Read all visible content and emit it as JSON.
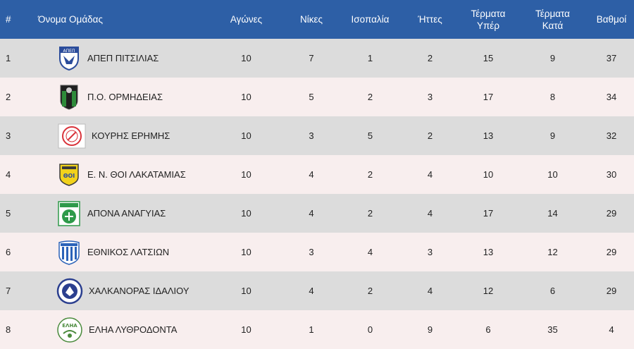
{
  "header": {
    "pos": "#",
    "team": "Όνομα Ομάδας",
    "played": "Αγώνες",
    "wins": "Νίκες",
    "draws": "Ισοπαλία",
    "losses": "Ήττες",
    "goals_for_line1": "Τέρματα",
    "goals_for_line2": "Υπέρ",
    "goals_against_line1": "Τέρματα",
    "goals_against_line2": "Κατά",
    "points": "Βαθμοί"
  },
  "colors": {
    "header_bg": "#2d5fa6",
    "row_odd": "#dcdcdc",
    "row_even": "#f8eeee"
  },
  "rows": [
    {
      "pos": "1",
      "team": "ΑΠΕΠ ΠΙΤΣΙΛΙΑΣ",
      "logo": "apep-crest-icon",
      "played": "10",
      "wins": "7",
      "draws": "1",
      "losses": "2",
      "gf": "15",
      "ga": "9",
      "pts": "37",
      "logo_text": "ΑΠΕΠ"
    },
    {
      "pos": "2",
      "team": "Π.Ο. ΟΡΜΗΔΕΙΑΣ",
      "logo": "ormideia-crest-icon",
      "played": "10",
      "wins": "5",
      "draws": "2",
      "losses": "3",
      "gf": "17",
      "ga": "8",
      "pts": "34"
    },
    {
      "pos": "3",
      "team": "ΚΟΥΡΗΣ ΕΡΗΜΗΣ",
      "logo": "kouris-crest-icon",
      "played": "10",
      "wins": "3",
      "draws": "5",
      "losses": "2",
      "gf": "13",
      "ga": "9",
      "pts": "32"
    },
    {
      "pos": "4",
      "team": "Ε. Ν. ΘΟΙ ΛΑΚΑΤΑΜΙΑΣ",
      "logo": "thoi-crest-icon",
      "played": "10",
      "wins": "4",
      "draws": "2",
      "losses": "4",
      "gf": "10",
      "ga": "10",
      "pts": "30",
      "logo_text": "ΘΟΙ"
    },
    {
      "pos": "5",
      "team": "ΑΠΟΝΑ ΑΝΑΓΥΙΑΣ",
      "logo": "apona-crest-icon",
      "played": "10",
      "wins": "4",
      "draws": "2",
      "losses": "4",
      "gf": "17",
      "ga": "14",
      "pts": "29"
    },
    {
      "pos": "6",
      "team": "ΕΘΝΙΚΟΣ ΛΑΤΣΙΩΝ",
      "logo": "ethnikos-crest-icon",
      "played": "10",
      "wins": "3",
      "draws": "4",
      "losses": "3",
      "gf": "13",
      "ga": "12",
      "pts": "29"
    },
    {
      "pos": "7",
      "team": "ΧΑΛΚΑΝΟΡΑΣ ΙΔΑΛΙΟΥ",
      "logo": "chalkanoras-crest-icon",
      "played": "10",
      "wins": "4",
      "draws": "2",
      "losses": "4",
      "gf": "12",
      "ga": "6",
      "pts": "29"
    },
    {
      "pos": "8",
      "team": "ΕΛΗΑ ΛΥΘΡΟΔΟΝΤΑ",
      "logo": "elia-crest-icon",
      "played": "10",
      "wins": "1",
      "draws": "0",
      "losses": "9",
      "gf": "6",
      "ga": "35",
      "pts": "4",
      "logo_text": "ΕΛΗΑ"
    }
  ]
}
